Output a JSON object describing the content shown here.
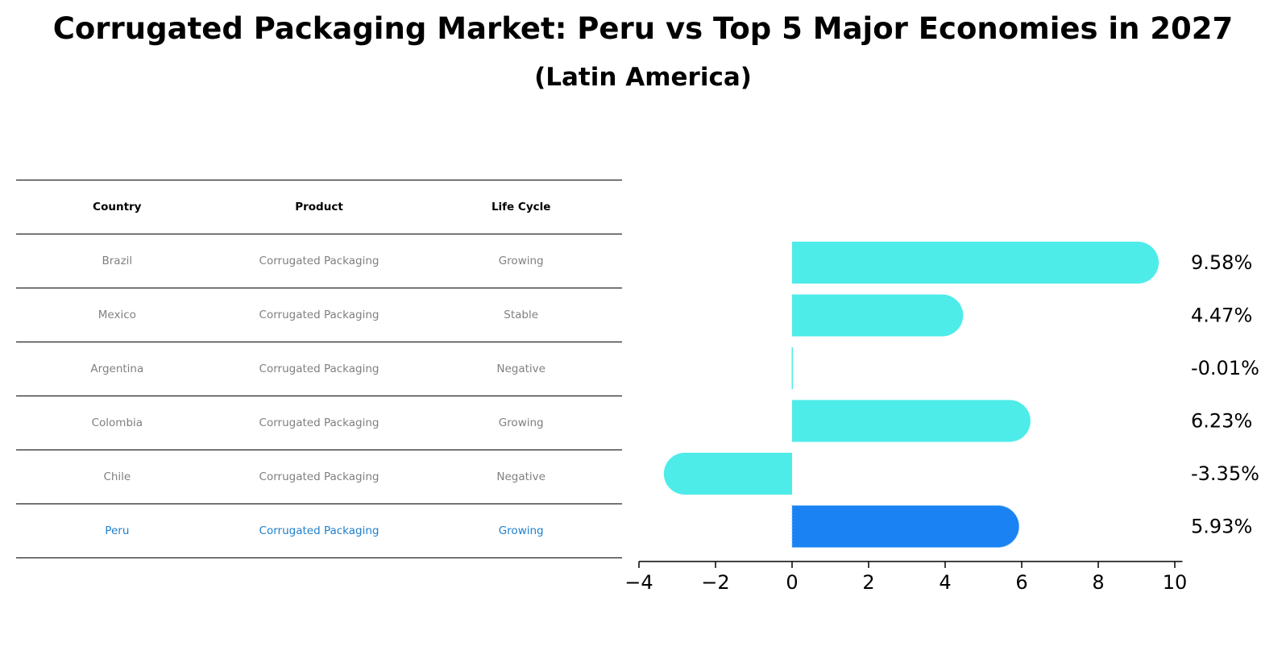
{
  "title": "Corrugated Packaging Market: Peru vs Top 5 Major Economies in 2027",
  "subtitle": "(Latin America)",
  "table": {
    "headers": [
      "Country",
      "Product",
      "Life Cycle"
    ],
    "rows": [
      [
        "Brazil",
        "Corrugated Packaging",
        "Growing"
      ],
      [
        "Mexico",
        "Corrugated Packaging",
        "Stable"
      ],
      [
        "Argentina",
        "Corrugated Packaging",
        "Negative"
      ],
      [
        "Colombia",
        "Corrugated Packaging",
        "Growing"
      ],
      [
        "Chile",
        "Corrugated Packaging",
        "Negative"
      ],
      [
        "Peru",
        "Corrugated Packaging",
        "Growing"
      ]
    ]
  },
  "chart_data": {
    "type": "bar",
    "orientation": "horizontal",
    "categories": [
      "Brazil",
      "Mexico",
      "Argentina",
      "Colombia",
      "Chile",
      "Peru"
    ],
    "values": [
      9.58,
      4.47,
      -0.01,
      6.23,
      -3.35,
      5.93
    ],
    "labels": [
      "9.58%",
      "4.47%",
      "-0.01%",
      "6.23%",
      "-3.35%",
      "5.93%"
    ],
    "highlight": "Peru",
    "xlim": [
      -4,
      10.2
    ],
    "xticks": [
      -4,
      -2,
      0,
      2,
      4,
      6,
      8,
      10
    ],
    "xtick_labels": [
      "−4",
      "−2",
      "0",
      "2",
      "4",
      "6",
      "8",
      "10"
    ],
    "colors": {
      "default": "#4eece9",
      "highlight": "#1a82f2"
    }
  }
}
